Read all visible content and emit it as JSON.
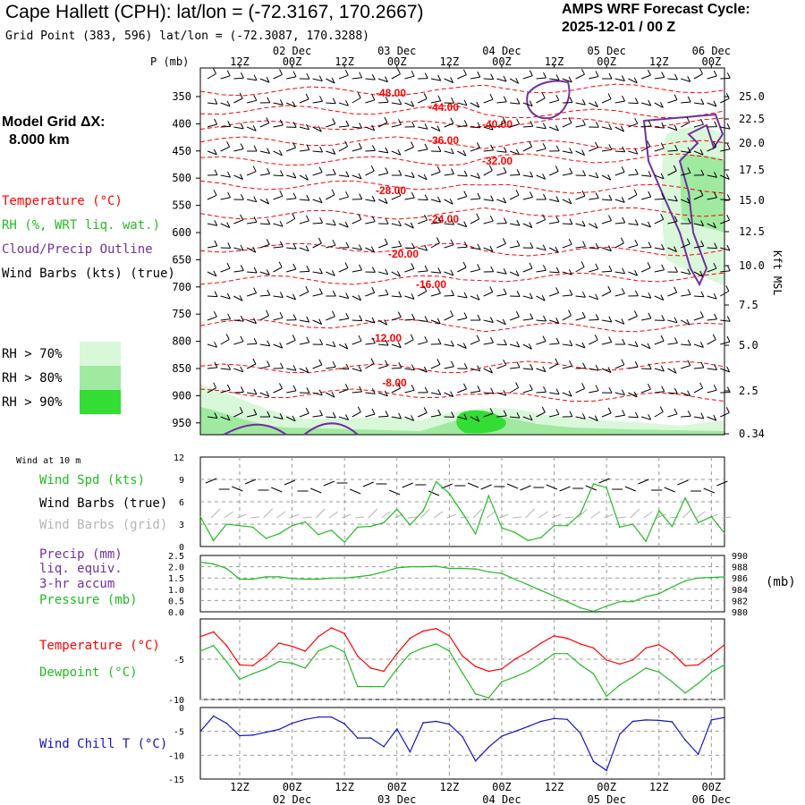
{
  "header": {
    "title": "Cape Hallett (CPH):  lat/lon = (-72.3167, 170.2667)",
    "grid_point": "Grid Point (383, 596) lat/lon = (-72.3087, 170.3288)",
    "cycle_line1": "AMPS WRF Forecast Cycle:",
    "cycle_line2": "2025-12-01 / 00  Z"
  },
  "left_panel": {
    "model_grid_title": "Model Grid ΔX:",
    "model_grid_value": "8.000 km",
    "legend_temperature": "Temperature (°C)",
    "legend_rh": "RH (%, WRT liq. wat.)",
    "legend_cloud": "Cloud/Precip Outline",
    "legend_wind": "Wind Barbs (kts) (true)",
    "rh70": "RH > 70%",
    "rh80": "RH > 80%",
    "rh90": "RH > 90%"
  },
  "colors": {
    "temperature": "#ff0000",
    "rh": "#22bb22",
    "cloud": "#7030a0",
    "wind_chill": "#1515c0",
    "grid_wind_barbs": "#b4b4b4",
    "rh70": "#d9f7d9",
    "rh80": "#9feaa0",
    "rh90": "#33dd33"
  },
  "chart_data": [
    {
      "id": "profile",
      "type": "contour-profile",
      "ylabel_left": "P (mb)",
      "ylabel_right": "Kft MSL",
      "pressure_ticks": [
        "350",
        "400",
        "450",
        "500",
        "550",
        "600",
        "650",
        "700",
        "750",
        "800",
        "850",
        "900",
        "950"
      ],
      "height_ticks": [
        "25.0",
        "22.5",
        "20.0",
        "17.5",
        "15.0",
        "12.5",
        "10.0",
        "7.5",
        "5.0",
        "2.5",
        "0.34"
      ],
      "top_time_hours": [
        "12Z",
        "00Z",
        "12Z",
        "00Z",
        "12Z",
        "00Z",
        "12Z",
        "00Z",
        "12Z",
        "00Z"
      ],
      "top_date_labels": [
        "02 Dec",
        "03 Dec",
        "04 Dec",
        "05 Dec",
        "06 Dec"
      ],
      "temperature_labels": [
        "-48.00",
        "-44.00",
        "-40.00",
        "-36.00",
        "-32.00",
        "-28.00",
        "-24.00",
        "-20.00",
        "-16.00",
        "-12.00",
        "-8.00"
      ]
    },
    {
      "id": "wind10m",
      "type": "line",
      "title": "Wind at 10 m",
      "legend": [
        "Wind Spd (kts)",
        "Wind Barbs (true)",
        "Wind Barbs (grid)"
      ],
      "ylim": [
        0,
        12
      ],
      "y_ticks": [
        "0",
        "3",
        "6",
        "9",
        "12"
      ],
      "series": [
        {
          "name": "Wind Spd (kts)",
          "color": "#22bb22",
          "values": [
            4,
            0.8,
            3,
            2.8,
            2.6,
            1.1,
            1.7,
            2.8,
            3.3,
            1.6,
            2.2,
            0.6,
            2.6,
            2.7,
            3.2,
            5,
            2.9,
            4.8,
            8.7,
            7.1,
            4.5,
            1.7,
            6.8,
            2.5,
            1.9,
            0.8,
            1.2,
            2.8,
            2.8,
            4.4,
            8.4,
            7.9,
            2.6,
            3,
            0.7,
            4.8,
            2.7,
            6.5,
            3.2,
            4,
            1.8
          ]
        }
      ]
    },
    {
      "id": "precip_pressure",
      "type": "line",
      "legend": [
        "Precip (mm)",
        "liq. equiv.",
        "3-hr accum",
        "Pressure (mb)"
      ],
      "y_ticks_left": [
        "0.0",
        "0.5",
        "1.0",
        "1.5",
        "2.0",
        "2.5"
      ],
      "y_ticks_right": [
        "980",
        "982",
        "984",
        "986",
        "988",
        "990"
      ],
      "right_unit": "(mb)",
      "ylim_right": [
        980,
        990
      ],
      "series": [
        {
          "name": "Pressure (mb)",
          "color": "#22bb22",
          "values": [
            988.8,
            988.5,
            987.7,
            985.8,
            985.8,
            986.2,
            986.2,
            985.9,
            985.8,
            985.8,
            986,
            986,
            986.2,
            986.5,
            987.1,
            987.8,
            988,
            988,
            988.1,
            987.7,
            987.7,
            987.6,
            987.1,
            986.8,
            985.8,
            984.8,
            983.8,
            982.8,
            981.8,
            980.7,
            980.1,
            981,
            981.8,
            981.8,
            982.7,
            983.2,
            984.4,
            985.5,
            986,
            986.1,
            986.2
          ]
        }
      ]
    },
    {
      "id": "temp_dew",
      "type": "line",
      "legend": [
        "Temperature (°C)",
        "Dewpoint (°C)"
      ],
      "ylim": [
        -10,
        0
      ],
      "y_ticks": [
        "-10",
        "-5"
      ],
      "series": [
        {
          "name": "Temperature (°C)",
          "color": "#ff0000",
          "values": [
            -2.2,
            -1.6,
            -3.3,
            -5.7,
            -5.8,
            -4.6,
            -3,
            -3.4,
            -4,
            -2.2,
            -1.1,
            -1.8,
            -4.6,
            -6.1,
            -6.5,
            -4.3,
            -2.4,
            -1.5,
            -1.2,
            -2.1,
            -4.6,
            -5.9,
            -6.5,
            -6.2,
            -5,
            -4.1,
            -3,
            -2.1,
            -2.4,
            -3.1,
            -3.6,
            -5.1,
            -5.6,
            -5.1,
            -3.6,
            -3.2,
            -4.2,
            -5.8,
            -5.7,
            -4.5,
            -3.2
          ]
        },
        {
          "name": "Dewpoint (°C)",
          "color": "#22bb22",
          "values": [
            -4,
            -3.3,
            -5.3,
            -7.5,
            -6.8,
            -6.2,
            -5.3,
            -5.5,
            -6.1,
            -4,
            -3.3,
            -4.1,
            -8.4,
            -8.4,
            -8.4,
            -6.2,
            -4.3,
            -3.6,
            -3.1,
            -4,
            -6.7,
            -9.3,
            -9.8,
            -7.8,
            -7.2,
            -6.5,
            -5.5,
            -4.3,
            -4.3,
            -5.7,
            -6.8,
            -9.6,
            -8.2,
            -7.2,
            -6.1,
            -6.6,
            -7.8,
            -9.2,
            -8,
            -6.6,
            -5.7
          ]
        }
      ]
    },
    {
      "id": "windchill",
      "type": "line",
      "legend": [
        "Wind Chill T (°C)"
      ],
      "ylim": [
        -15,
        0
      ],
      "y_ticks": [
        "0",
        "-5",
        "-10",
        "-15"
      ],
      "x_hour_labels": [
        "12Z",
        "00Z",
        "12Z",
        "00Z",
        "12Z",
        "00Z",
        "12Z",
        "00Z",
        "12Z",
        "00Z"
      ],
      "x_date_labels": [
        "02 Dec",
        "03 Dec",
        "04 Dec",
        "05 Dec",
        "06 Dec"
      ],
      "series": [
        {
          "name": "Wind Chill T (°C)",
          "color": "#1515c0",
          "values": [
            -5,
            -1.8,
            -3.3,
            -5.9,
            -5.8,
            -5.2,
            -4.6,
            -3.3,
            -2.5,
            -2,
            -2,
            -3.4,
            -6.4,
            -6.4,
            -8.2,
            -4.5,
            -9.3,
            -3.2,
            -2.9,
            -3.5,
            -6.1,
            -11.2,
            -8.3,
            -6,
            -5,
            -4,
            -2.9,
            -2.3,
            -2.5,
            -5.4,
            -11.3,
            -13.2,
            -5.6,
            -2.9,
            -2.6,
            -2.7,
            -3,
            -6.8,
            -9.8,
            -2.6,
            -2.1
          ]
        }
      ]
    }
  ]
}
